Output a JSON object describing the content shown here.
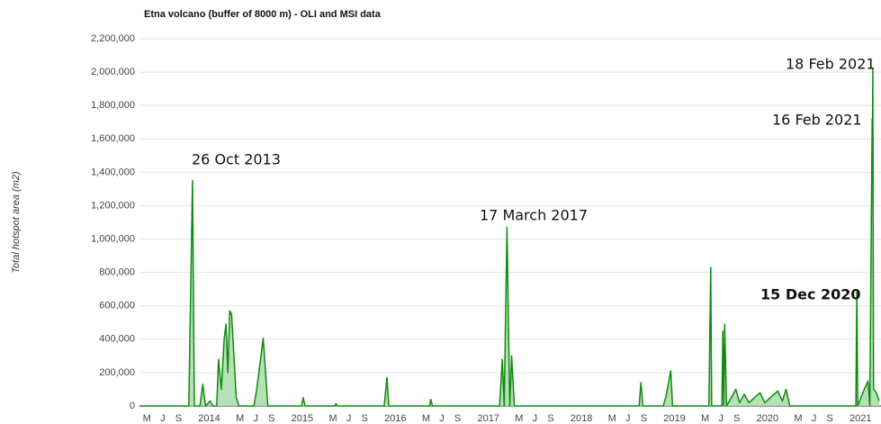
{
  "chart_data": {
    "type": "area",
    "title": "Etna volcano (buffer of 8000 m) - OLI and MSI data",
    "y_label": "Total hotspot area (m2)",
    "color": "#0f8a0f",
    "area_color": "#a9dba9",
    "grid": true,
    "x": [
      2013.25,
      2013.78,
      2013.82,
      2013.84,
      2013.9,
      2013.93,
      2013.96,
      2014.01,
      2014.04,
      2014.08,
      2014.1,
      2014.13,
      2014.16,
      2014.18,
      2014.2,
      2014.22,
      2014.24,
      2014.29,
      2014.32,
      2014.48,
      2014.51,
      2014.58,
      2014.63,
      2014.99,
      2015.01,
      2015.03,
      2015.35,
      2015.36,
      2015.38,
      2015.88,
      2015.91,
      2015.93,
      2016.37,
      2016.38,
      2016.4,
      2017.12,
      2017.15,
      2017.17,
      2017.2,
      2017.23,
      2017.25,
      2017.28,
      2018.62,
      2018.64,
      2018.66,
      2018.88,
      2018.91,
      2018.96,
      2018.98,
      2019.37,
      2019.39,
      2019.4,
      2019.51,
      2019.52,
      2019.53,
      2019.54,
      2019.56,
      2019.66,
      2019.7,
      2019.75,
      2019.8,
      2019.92,
      2019.97,
      2020.11,
      2020.16,
      2020.2,
      2020.24,
      2020.95,
      2020.96,
      2020.97,
      2021.04,
      2021.08,
      2021.1,
      2021.125,
      2021.128,
      2021.132,
      2021.14,
      2021.17,
      2021.2
    ],
    "values": [
      0,
      0,
      1350000,
      0,
      0,
      130000,
      0,
      30000,
      0,
      0,
      280000,
      100000,
      400000,
      490000,
      200000,
      570000,
      550000,
      50000,
      0,
      0,
      100000,
      405000,
      0,
      0,
      50000,
      0,
      0,
      15000,
      0,
      0,
      170000,
      0,
      0,
      40000,
      0,
      0,
      280000,
      0,
      1070000,
      0,
      300000,
      0,
      0,
      140000,
      0,
      0,
      60000,
      210000,
      0,
      0,
      830000,
      0,
      0,
      450000,
      0,
      490000,
      0,
      100000,
      20000,
      70000,
      20000,
      80000,
      20000,
      90000,
      30000,
      100000,
      0,
      0,
      680000,
      0,
      100000,
      150000,
      0,
      1720000,
      1500000,
      2020000,
      100000,
      80000,
      30000
    ],
    "xlim": [
      2013.25,
      2021.22
    ],
    "xticks": [
      {
        "value": 2013.33,
        "label": "M"
      },
      {
        "value": 2013.5,
        "label": "J"
      },
      {
        "value": 2013.67,
        "label": "S"
      },
      {
        "value": 2014,
        "label": "2014"
      },
      {
        "value": 2014.33,
        "label": "M"
      },
      {
        "value": 2014.5,
        "label": "J"
      },
      {
        "value": 2014.67,
        "label": "S"
      },
      {
        "value": 2015,
        "label": "2015"
      },
      {
        "value": 2015.33,
        "label": "M"
      },
      {
        "value": 2015.5,
        "label": "J"
      },
      {
        "value": 2015.67,
        "label": "S"
      },
      {
        "value": 2016,
        "label": "2016"
      },
      {
        "value": 2016.33,
        "label": "M"
      },
      {
        "value": 2016.5,
        "label": "J"
      },
      {
        "value": 2016.67,
        "label": "S"
      },
      {
        "value": 2017,
        "label": "2017"
      },
      {
        "value": 2017.33,
        "label": "M"
      },
      {
        "value": 2017.5,
        "label": "J"
      },
      {
        "value": 2017.67,
        "label": "S"
      },
      {
        "value": 2018,
        "label": "2018"
      },
      {
        "value": 2018.33,
        "label": "M"
      },
      {
        "value": 2018.5,
        "label": "J"
      },
      {
        "value": 2018.67,
        "label": "S"
      },
      {
        "value": 2019,
        "label": "2019"
      },
      {
        "value": 2019.33,
        "label": "M"
      },
      {
        "value": 2019.5,
        "label": "J"
      },
      {
        "value": 2019.67,
        "label": "S"
      },
      {
        "value": 2020,
        "label": "2020"
      },
      {
        "value": 2020.33,
        "label": "M"
      },
      {
        "value": 2020.5,
        "label": "J"
      },
      {
        "value": 2020.67,
        "label": "S"
      },
      {
        "value": 2021,
        "label": "2021"
      }
    ],
    "ylim": [
      0,
      2200000
    ],
    "yticks": [
      0,
      {
        "value": 200000,
        "label": "200,000"
      },
      {
        "value": 400000,
        "label": "400,000"
      },
      {
        "value": 600000,
        "label": "600,000"
      },
      {
        "value": 800000,
        "label": "800,000"
      },
      {
        "value": 1000000,
        "label": "1,000,000"
      },
      {
        "value": 1200000,
        "label": "1,200,000"
      },
      {
        "value": 1400000,
        "label": "1,400,000"
      },
      {
        "value": 1600000,
        "label": "1,600,000"
      },
      {
        "value": 1800000,
        "label": "1,800,000"
      },
      {
        "value": 2000000,
        "label": "2,000,000"
      },
      {
        "value": 2200000,
        "label": "2,200,000"
      }
    ],
    "annotations": [
      "26 Oct 2013",
      "17 March 2017",
      "16 Feb 2021",
      "18 Feb 2021",
      "15 Dec 2020"
    ]
  }
}
